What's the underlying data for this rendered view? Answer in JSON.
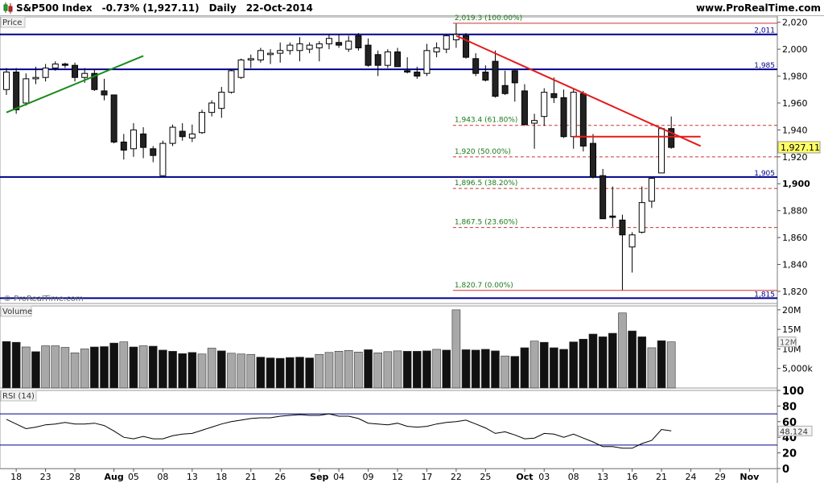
{
  "header": {
    "title": "S&P500 Index",
    "change": "-0.73% (1,927.11)",
    "period": "Daily",
    "date": "22-Oct-2014",
    "website": "www.ProRealTime.com"
  },
  "panels": {
    "price_label": "Price",
    "volume_label": "Volume",
    "rsi_label": "RSI (14)",
    "watermark": "© ProRealTime.com"
  },
  "colors": {
    "bull": "#ffffff",
    "bear": "#222222",
    "level_line": "#00008b",
    "fib_line": "#cc3333",
    "trend_red": "#e41a1a",
    "trend_green": "#1a8a1a",
    "fib_text": "#1a7a1a",
    "last_price_bg": "#ffff66"
  },
  "chart_data": [
    {
      "type": "candlestick",
      "title": "S&P500 Index",
      "yaxis": {
        "range": [
          1811,
          2024
        ],
        "ticks": [
          2020,
          2000,
          1980,
          1960,
          1940,
          1920,
          1900,
          1880,
          1860,
          1840,
          1820
        ],
        "tick_labels": [
          "2,020",
          "2,000",
          "1,980",
          "1,960",
          "1,940",
          "1,920",
          "1,900",
          "1,880",
          "1,860",
          "1,840",
          "1,820"
        ],
        "bold_tick": 1900
      },
      "xaxis": {
        "labels": [
          {
            "bar": 1,
            "text": "18"
          },
          {
            "bar": 4,
            "text": "23"
          },
          {
            "bar": 7,
            "text": "28"
          },
          {
            "bar": 11,
            "text": "Aug",
            "bold": true
          },
          {
            "bar": 13,
            "text": "05"
          },
          {
            "bar": 16,
            "text": "08"
          },
          {
            "bar": 19,
            "text": "13"
          },
          {
            "bar": 22,
            "text": "18"
          },
          {
            "bar": 25,
            "text": "21"
          },
          {
            "bar": 28,
            "text": "26"
          },
          {
            "bar": 32,
            "text": "Sep",
            "bold": true
          },
          {
            "bar": 34,
            "text": "04"
          },
          {
            "bar": 37,
            "text": "09"
          },
          {
            "bar": 40,
            "text": "12"
          },
          {
            "bar": 43,
            "text": "17"
          },
          {
            "bar": 46,
            "text": "22"
          },
          {
            "bar": 49,
            "text": "25"
          },
          {
            "bar": 53,
            "text": "Oct",
            "bold": true
          },
          {
            "bar": 55,
            "text": "03"
          },
          {
            "bar": 58,
            "text": "08"
          },
          {
            "bar": 61,
            "text": "13"
          },
          {
            "bar": 64,
            "text": "16"
          },
          {
            "bar": 67,
            "text": "21"
          },
          {
            "bar": 70,
            "text": "24"
          },
          {
            "bar": 73,
            "text": "29"
          },
          {
            "bar": 76,
            "text": "Nov",
            "bold": true
          }
        ]
      },
      "candles": [
        {
          "o": 1970,
          "h": 1986,
          "l": 1966,
          "c": 1983
        },
        {
          "o": 1983,
          "h": 1986,
          "l": 1952,
          "c": 1955
        },
        {
          "o": 1960,
          "h": 1982,
          "l": 1958,
          "c": 1978
        },
        {
          "o": 1978,
          "h": 1987,
          "l": 1974,
          "c": 1979
        },
        {
          "o": 1979,
          "h": 1989,
          "l": 1976,
          "c": 1986
        },
        {
          "o": 1986,
          "h": 1991,
          "l": 1984,
          "c": 1989
        },
        {
          "o": 1989,
          "h": 1990,
          "l": 1986,
          "c": 1988
        },
        {
          "o": 1988,
          "h": 1990,
          "l": 1976,
          "c": 1979
        },
        {
          "o": 1979,
          "h": 1986,
          "l": 1975,
          "c": 1982
        },
        {
          "o": 1982,
          "h": 1985,
          "l": 1969,
          "c": 1970
        },
        {
          "o": 1969,
          "h": 1978,
          "l": 1962,
          "c": 1966
        },
        {
          "o": 1966,
          "h": 1966,
          "l": 1930,
          "c": 1931
        },
        {
          "o": 1931,
          "h": 1937,
          "l": 1918,
          "c": 1925
        },
        {
          "o": 1926,
          "h": 1945,
          "l": 1920,
          "c": 1940
        },
        {
          "o": 1937,
          "h": 1942,
          "l": 1919,
          "c": 1927
        },
        {
          "o": 1926,
          "h": 1928,
          "l": 1916,
          "c": 1921
        },
        {
          "o": 1906,
          "h": 1932,
          "l": 1906,
          "c": 1930
        },
        {
          "o": 1930,
          "h": 1944,
          "l": 1928,
          "c": 1942
        },
        {
          "o": 1939,
          "h": 1945,
          "l": 1932,
          "c": 1935
        },
        {
          "o": 1934,
          "h": 1944,
          "l": 1931,
          "c": 1937
        },
        {
          "o": 1938,
          "h": 1955,
          "l": 1937,
          "c": 1953
        },
        {
          "o": 1953,
          "h": 1962,
          "l": 1950,
          "c": 1960
        },
        {
          "o": 1956,
          "h": 1972,
          "l": 1949,
          "c": 1968
        },
        {
          "o": 1968,
          "h": 1985,
          "l": 1967,
          "c": 1984
        },
        {
          "o": 1979,
          "h": 1993,
          "l": 1978,
          "c": 1992
        },
        {
          "o": 1992,
          "h": 1996,
          "l": 1986,
          "c": 1993
        },
        {
          "o": 1992,
          "h": 2001,
          "l": 1990,
          "c": 1999
        },
        {
          "o": 1996,
          "h": 2000,
          "l": 1989,
          "c": 1997
        },
        {
          "o": 1997,
          "h": 2005,
          "l": 1990,
          "c": 1999
        },
        {
          "o": 1999,
          "h": 2005,
          "l": 1996,
          "c": 2003
        },
        {
          "o": 1999,
          "h": 2009,
          "l": 1991,
          "c": 2004
        },
        {
          "o": 2000,
          "h": 2005,
          "l": 1997,
          "c": 2003
        },
        {
          "o": 2001,
          "h": 2006,
          "l": 1991,
          "c": 2004
        },
        {
          "o": 2004,
          "h": 2011,
          "l": 2000,
          "c": 2008
        },
        {
          "o": 2005,
          "h": 2011,
          "l": 2001,
          "c": 2003
        },
        {
          "o": 2000,
          "h": 2010,
          "l": 1998,
          "c": 2006
        },
        {
          "o": 2010,
          "h": 2012,
          "l": 1999,
          "c": 2001
        },
        {
          "o": 2003,
          "h": 2008,
          "l": 1987,
          "c": 1988
        },
        {
          "o": 1996,
          "h": 1999,
          "l": 1980,
          "c": 1988
        },
        {
          "o": 1988,
          "h": 2000,
          "l": 1986,
          "c": 1998
        },
        {
          "o": 1998,
          "h": 2001,
          "l": 1988,
          "c": 1987
        },
        {
          "o": 1984,
          "h": 1994,
          "l": 1982,
          "c": 1983
        },
        {
          "o": 1983,
          "h": 1987,
          "l": 1978,
          "c": 1980
        },
        {
          "o": 1982,
          "h": 2004,
          "l": 1980,
          "c": 1999
        },
        {
          "o": 1998,
          "h": 2005,
          "l": 1994,
          "c": 2001
        },
        {
          "o": 2000,
          "h": 2011,
          "l": 1997,
          "c": 2010
        },
        {
          "o": 2007,
          "h": 2019,
          "l": 2001,
          "c": 2011
        },
        {
          "o": 2010,
          "h": 2012,
          "l": 1993,
          "c": 1994
        },
        {
          "o": 1993,
          "h": 1997,
          "l": 1980,
          "c": 1982
        },
        {
          "o": 1983,
          "h": 1988,
          "l": 1976,
          "c": 1977
        },
        {
          "o": 1991,
          "h": 1999,
          "l": 1964,
          "c": 1965
        },
        {
          "o": 1973,
          "h": 1984,
          "l": 1966,
          "c": 1967
        },
        {
          "o": 1984,
          "h": 1985,
          "l": 1961,
          "c": 1975
        },
        {
          "o": 1969,
          "h": 1974,
          "l": 1943,
          "c": 1944
        },
        {
          "o": 1945,
          "h": 1952,
          "l": 1926,
          "c": 1947
        },
        {
          "o": 1950,
          "h": 1971,
          "l": 1943,
          "c": 1968
        },
        {
          "o": 1967,
          "h": 1979,
          "l": 1960,
          "c": 1964
        },
        {
          "o": 1964,
          "h": 1970,
          "l": 1934,
          "c": 1935
        },
        {
          "o": 1935,
          "h": 1970,
          "l": 1926,
          "c": 1968
        },
        {
          "o": 1967,
          "h": 1969,
          "l": 1924,
          "c": 1928
        },
        {
          "o": 1930,
          "h": 1937,
          "l": 1904,
          "c": 1905
        },
        {
          "o": 1906,
          "h": 1911,
          "l": 1874,
          "c": 1874
        },
        {
          "o": 1876,
          "h": 1898,
          "l": 1868,
          "c": 1875
        },
        {
          "o": 1873,
          "h": 1877,
          "l": 1821,
          "c": 1862
        },
        {
          "o": 1853,
          "h": 1864,
          "l": 1834,
          "c": 1862
        },
        {
          "o": 1864,
          "h": 1898,
          "l": 1863,
          "c": 1886
        },
        {
          "o": 1887,
          "h": 1905,
          "l": 1882,
          "c": 1904
        },
        {
          "o": 1908,
          "h": 1942,
          "l": 1908,
          "c": 1941
        },
        {
          "o": 1941,
          "h": 1950,
          "l": 1926,
          "c": 1927
        }
      ],
      "levels": [
        {
          "value": 2011,
          "label": "2,011"
        },
        {
          "value": 1985,
          "label": "1,985"
        },
        {
          "value": 1905,
          "label": "1,905"
        },
        {
          "value": 1815,
          "label": "1,815"
        }
      ],
      "fibonacci": [
        {
          "value": 2019.3,
          "label": "2,019.3 (100.00%)",
          "solid": true
        },
        {
          "value": 1943.4,
          "label": "1,943.4 (61.80%)"
        },
        {
          "value": 1920.0,
          "label": "1,920 (50.00%)"
        },
        {
          "value": 1896.5,
          "label": "1,896.5 (38.20%)"
        },
        {
          "value": 1867.5,
          "label": "1,867.5 (23.60%)"
        },
        {
          "value": 1820.7,
          "label": "1,820.7 (0.00%)",
          "solid": true
        }
      ],
      "fib_start_bar": 46,
      "trendlines": [
        {
          "color": "red",
          "from": {
            "bar": 46,
            "value": 2010
          },
          "to": {
            "bar": 71,
            "value": 1928
          }
        },
        {
          "color": "red",
          "from": {
            "bar": 58,
            "value": 1935
          },
          "to": {
            "bar": 71,
            "value": 1935
          }
        },
        {
          "color": "green",
          "from": {
            "bar": 0,
            "value": 1953
          },
          "to": {
            "bar": 14,
            "value": 1995
          }
        }
      ],
      "last_price": {
        "value": 1927.11,
        "label": "1,927.11"
      }
    },
    {
      "type": "bar",
      "title": "Volume",
      "yaxis": {
        "range": [
          0,
          21000000
        ],
        "ticks": [
          20000000,
          15000000,
          10000000,
          5000000
        ],
        "tick_labels": [
          "20M",
          "15M",
          "10M",
          "5,000k"
        ]
      },
      "last_value_label": "12M",
      "values": [
        11.9,
        11.7,
        10.5,
        9.3,
        10.8,
        10.8,
        10.4,
        9.0,
        10.0,
        10.5,
        10.6,
        11.5,
        11.8,
        10.5,
        10.8,
        10.7,
        9.7,
        9.4,
        8.8,
        9.1,
        8.7,
        10.2,
        9.5,
        8.9,
        8.7,
        8.6,
        7.9,
        7.7,
        7.6,
        7.8,
        7.9,
        7.7,
        8.6,
        9.1,
        9.4,
        9.6,
        9.2,
        9.8,
        9.0,
        9.3,
        9.5,
        9.4,
        9.4,
        9.5,
        9.9,
        9.7,
        20.0,
        9.8,
        9.7,
        9.9,
        9.5,
        8.2,
        8.1,
        10.3,
        12.0,
        11.7,
        10.3,
        9.9,
        11.8,
        12.5,
        13.8,
        13.1,
        14.0,
        19.2,
        14.6,
        13.1,
        10.3,
        12.1,
        11.8
      ],
      "highlight": [
        0,
        1,
        3,
        9,
        10,
        11,
        13,
        15,
        16,
        17,
        18,
        19,
        22,
        26,
        27,
        28,
        29,
        30,
        31,
        37,
        41,
        42,
        43,
        45,
        47,
        48,
        49,
        50,
        52,
        53,
        55,
        56,
        57,
        58,
        59,
        60,
        61,
        62,
        64,
        65,
        67
      ],
      "unit": "million"
    },
    {
      "type": "line",
      "title": "RSI (14)",
      "yaxis": {
        "range": [
          0,
          100
        ],
        "ticks": [
          100,
          80,
          60,
          40,
          20,
          0
        ],
        "tick_labels": [
          "100",
          "80",
          "60",
          "40",
          "20",
          "0"
        ],
        "guides": [
          70,
          30
        ]
      },
      "last_value_label": "48.124",
      "values": [
        63,
        57,
        51,
        53,
        56,
        57,
        59,
        57,
        57,
        58,
        55,
        48,
        40,
        38,
        41,
        38,
        38,
        42,
        44,
        45,
        49,
        53,
        57,
        60,
        62,
        64,
        65,
        65,
        67,
        68,
        69,
        68,
        68,
        70,
        67,
        67,
        64,
        58,
        57,
        56,
        58,
        54,
        53,
        54,
        57,
        59,
        60,
        62,
        57,
        52,
        45,
        47,
        43,
        38,
        39,
        45,
        44,
        40,
        44,
        39,
        34,
        28,
        28,
        26,
        26,
        32,
        36,
        50,
        48.1
      ]
    }
  ]
}
